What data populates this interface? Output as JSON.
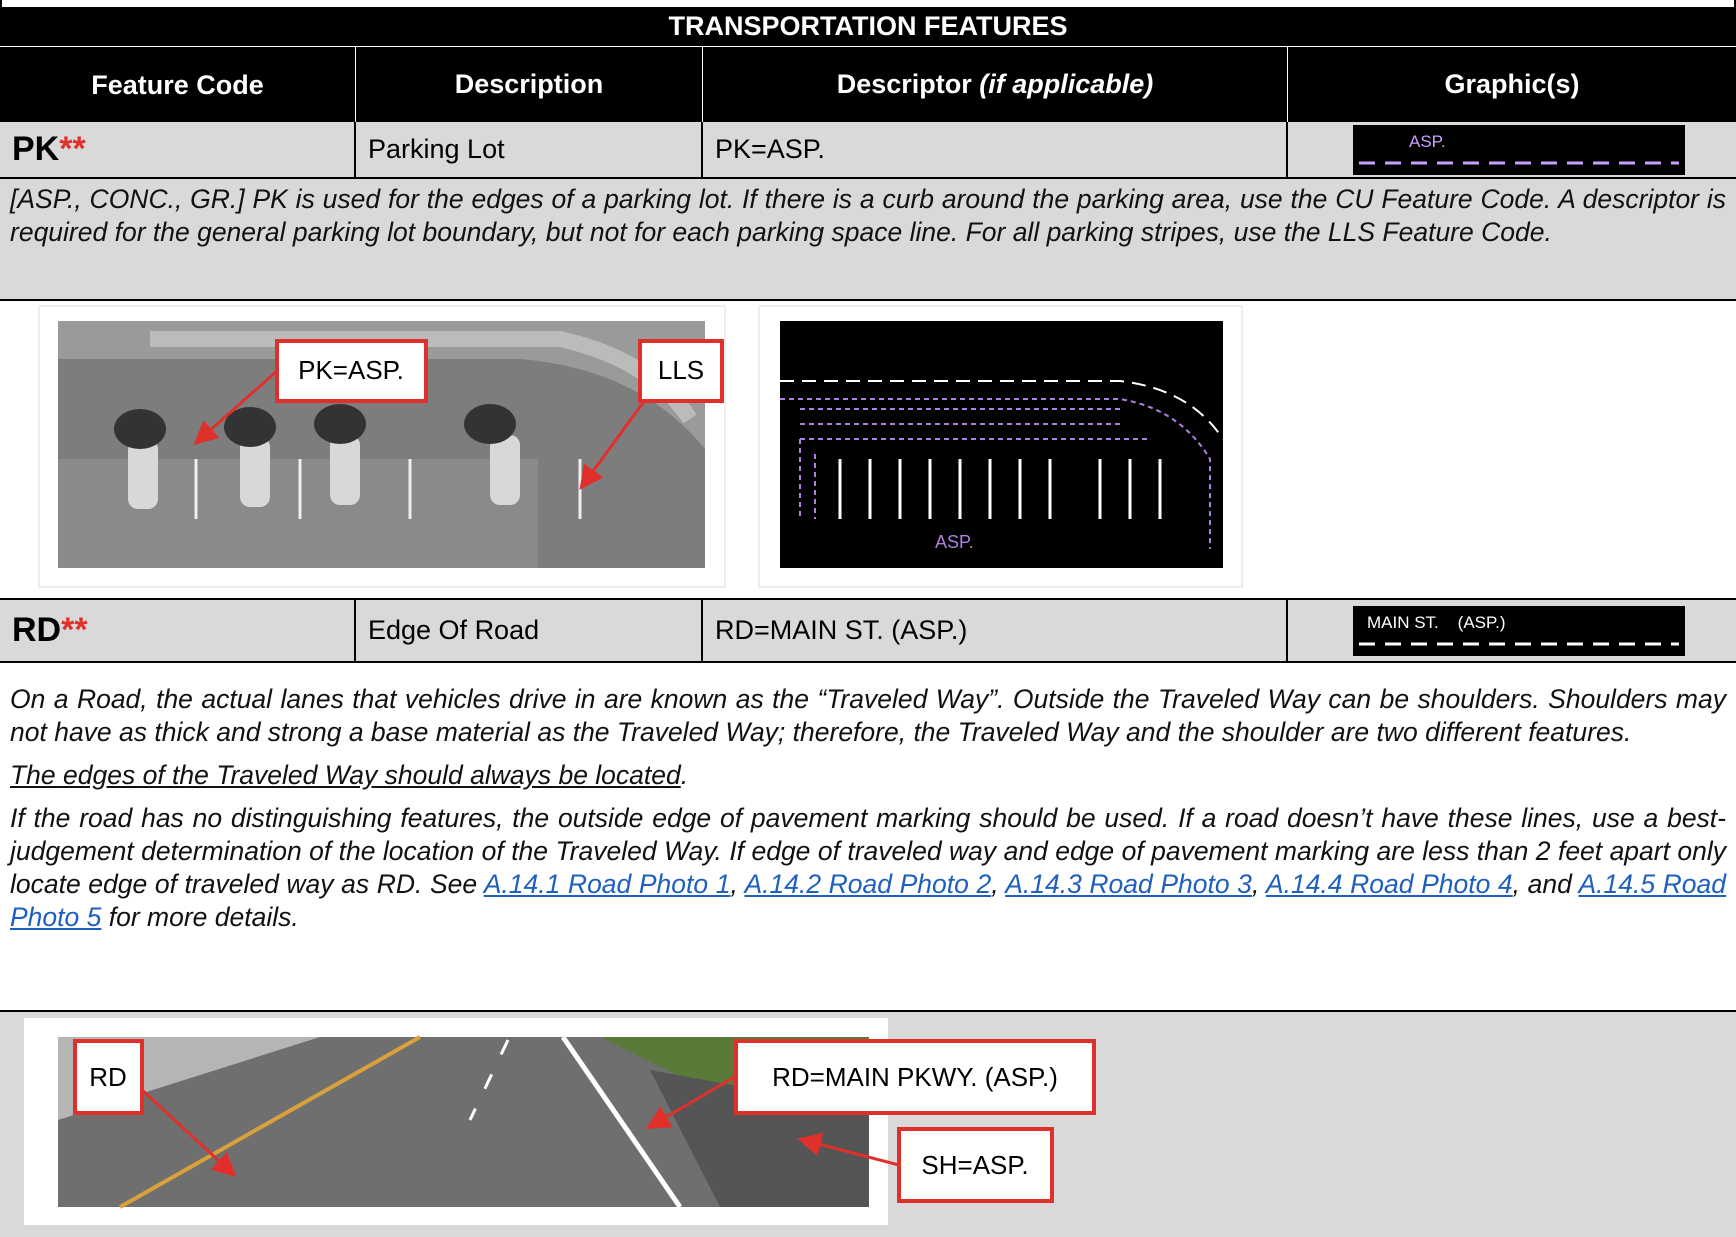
{
  "title": "TRANSPORTATION FEATURES",
  "header": {
    "code": "Feature Code",
    "description": "Description",
    "descriptor": "Descriptor",
    "descriptor_note": "(if applicable)",
    "graphics": "Graphic(s)"
  },
  "rows": [
    {
      "code": "PK",
      "mark": "**",
      "description": "Parking Lot",
      "descriptor": "PK=ASP.",
      "graphic_label": "ASP.",
      "notes": [
        [
          {
            "text": "[ASP., CONC., GR.] PK is used for the edges of a parking lot. If there is a curb around the parking area, use the CU Feature Code. A descriptor is required for the general parking lot boundary, but not for each parking space line. For all parking stripes, use the LLS Feature Code."
          }
        ]
      ],
      "callouts": [
        "PK=ASP.",
        "LLS"
      ],
      "drawing_label": "ASP."
    },
    {
      "code": "RD",
      "mark": "**",
      "description": "Edge Of Road",
      "descriptor": "RD=MAIN ST. (ASP.)",
      "graphic_label": "MAIN ST.    (ASP.)",
      "notes": [
        [
          {
            "text": "On a Road, the actual lanes that vehicles drive in are known as the “Traveled Way”. Outside the Traveled Way can be shoulders. Shoulders may not have as thick and strong a base material as the Traveled Way; therefore, the Traveled Way and the shoulder are two different features."
          }
        ],
        [
          {
            "text": "The edges of the Traveled Way should always be located",
            "style": "underline"
          },
          {
            "text": "."
          }
        ],
        [
          {
            "text": "If the road has no distinguishing features, the outside edge of pavement marking should be used. If a road doesn’t have these lines, use a best-judgement determination of the location of the Traveled Way. If edge of traveled way and edge of pavement marking are less than 2 feet apart only locate edge of traveled way as RD. See "
          },
          {
            "text": "A.14.1 Road Photo 1",
            "style": "link"
          },
          {
            "text": ", "
          },
          {
            "text": "A.14.2 Road Photo 2",
            "style": "link"
          },
          {
            "text": ", "
          },
          {
            "text": "A.14.3 Road Photo 3",
            "style": "link"
          },
          {
            "text": ", "
          },
          {
            "text": "A.14.4 Road Photo 4",
            "style": "link"
          },
          {
            "text": ", and "
          },
          {
            "text": "A.14.5 Road Photo 5",
            "style": "link"
          },
          {
            "text": " for more details."
          }
        ]
      ],
      "callouts": [
        "RD",
        "RD=MAIN PKWY. (ASP.)",
        "SH=ASP."
      ]
    }
  ]
}
